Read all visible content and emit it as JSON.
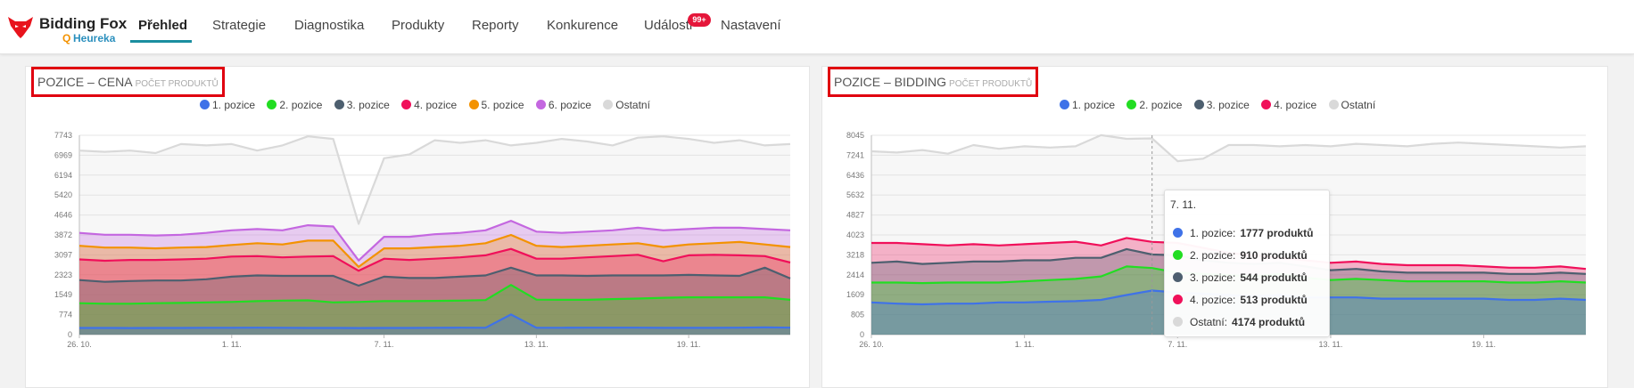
{
  "app": {
    "brand": "Bidding Fox",
    "brand_sub": "Heureka"
  },
  "nav": {
    "items": [
      {
        "label": "Přehled"
      },
      {
        "label": "Strategie"
      },
      {
        "label": "Diagnostika"
      },
      {
        "label": "Produkty"
      },
      {
        "label": "Reporty"
      },
      {
        "label": "Konkurence"
      },
      {
        "label": "Události"
      },
      {
        "label": "Nastavení"
      }
    ],
    "active_index": 0,
    "events_badge": "99+"
  },
  "panels": [
    {
      "title": "POZICE – CENA",
      "subtitle": "POČET PRODUKTŮ",
      "legend": [
        {
          "label": "1. pozice",
          "color": "#3f72e8"
        },
        {
          "label": "2. pozice",
          "color": "#22dd22"
        },
        {
          "label": "3. pozice",
          "color": "#4d5f6f"
        },
        {
          "label": "4. pozice",
          "color": "#f0105a"
        },
        {
          "label": "5. pozice",
          "color": "#f39200"
        },
        {
          "label": "6. pozice",
          "color": "#c467e0"
        },
        {
          "label": "Ostatní",
          "color": "#d9d9d9"
        }
      ]
    },
    {
      "title": "POZICE – BIDDING",
      "subtitle": "POČET PRODUKTŮ",
      "legend": [
        {
          "label": "1. pozice",
          "color": "#3f72e8"
        },
        {
          "label": "2. pozice",
          "color": "#22dd22"
        },
        {
          "label": "3. pozice",
          "color": "#4d5f6f"
        },
        {
          "label": "4. pozice",
          "color": "#f0105a"
        },
        {
          "label": "Ostatní",
          "color": "#d9d9d9"
        }
      ]
    }
  ],
  "tooltip": {
    "title": "7. 11.",
    "rows": [
      {
        "label": "1. pozice:",
        "value": "1777 produktů",
        "color": "#3f72e8"
      },
      {
        "label": "2. pozice:",
        "value": "910 produktů",
        "color": "#22dd22"
      },
      {
        "label": "3. pozice:",
        "value": "544 produktů",
        "color": "#4d5f6f"
      },
      {
        "label": "4. pozice:",
        "value": "513 produktů",
        "color": "#f0105a"
      },
      {
        "label": "Ostatní:",
        "value": "4174 produktů",
        "color": "#d9d9d9"
      }
    ]
  },
  "chart_data": [
    {
      "type": "area",
      "title": "POZICE – CENA",
      "subtitle": "POČET PRODUKTŮ",
      "stacked": true,
      "x_labels": [
        "26. 10.",
        "1. 11.",
        "7. 11.",
        "13. 11.",
        "19. 11."
      ],
      "y_ticks": [
        0,
        774,
        1549,
        2323,
        3097,
        3872,
        4646,
        5420,
        6194,
        6969,
        7743
      ],
      "ylim": [
        0,
        7743
      ],
      "series": [
        {
          "name": "1. pozice",
          "color": "#3f72e8",
          "top": [
            260,
            260,
            255,
            260,
            260,
            265,
            265,
            270,
            265,
            260,
            258,
            255,
            258,
            260,
            265,
            270,
            265,
            780,
            265,
            265,
            270,
            270,
            268,
            262,
            262,
            262,
            270,
            280,
            270
          ]
        },
        {
          "name": "2. pozice",
          "color": "#22dd22",
          "top": [
            1220,
            1200,
            1200,
            1220,
            1230,
            1250,
            1270,
            1300,
            1320,
            1330,
            1250,
            1270,
            1300,
            1300,
            1310,
            1320,
            1340,
            1930,
            1360,
            1350,
            1350,
            1380,
            1400,
            1430,
            1450,
            1450,
            1450,
            1450,
            1350
          ]
        },
        {
          "name": "3. pozice",
          "color": "#4d5f6f",
          "top": [
            2120,
            2050,
            2080,
            2100,
            2100,
            2150,
            2250,
            2300,
            2280,
            2280,
            2280,
            1900,
            2250,
            2200,
            2200,
            2250,
            2300,
            2600,
            2300,
            2300,
            2280,
            2300,
            2300,
            2300,
            2320,
            2300,
            2280,
            2600,
            2180
          ]
        },
        {
          "name": "4. pozice",
          "color": "#f0105a",
          "top": [
            2920,
            2870,
            2900,
            2900,
            2920,
            2950,
            3030,
            3050,
            3000,
            3030,
            3050,
            2480,
            2950,
            2900,
            2950,
            3000,
            3080,
            3330,
            2950,
            2950,
            3000,
            3050,
            3100,
            2850,
            3080,
            3100,
            3080,
            3050,
            2800
          ]
        },
        {
          "name": "5. pozice",
          "color": "#f39200",
          "top": [
            3450,
            3380,
            3380,
            3350,
            3380,
            3400,
            3480,
            3550,
            3500,
            3650,
            3650,
            2630,
            3350,
            3350,
            3400,
            3450,
            3550,
            3870,
            3450,
            3400,
            3450,
            3500,
            3550,
            3400,
            3500,
            3550,
            3600,
            3500,
            3400
          ]
        },
        {
          "name": "6. pozice",
          "color": "#c467e0",
          "top": [
            3950,
            3880,
            3880,
            3850,
            3880,
            3950,
            4050,
            4100,
            4050,
            4250,
            4200,
            2880,
            3800,
            3800,
            3900,
            3950,
            4050,
            4420,
            4000,
            3950,
            4000,
            4050,
            4150,
            4050,
            4100,
            4150,
            4150,
            4100,
            4050
          ]
        },
        {
          "name": "Ostatní",
          "color": "#d9d9d9",
          "top": [
            7150,
            7100,
            7150,
            7050,
            7400,
            7350,
            7400,
            7150,
            7350,
            7700,
            7600,
            4300,
            6850,
            7000,
            7550,
            7450,
            7550,
            7350,
            7450,
            7600,
            7500,
            7350,
            7650,
            7700,
            7600,
            7450,
            7550,
            7350,
            7400
          ]
        }
      ]
    },
    {
      "type": "area",
      "title": "POZICE – BIDDING",
      "subtitle": "POČET PRODUKTŮ",
      "stacked": true,
      "x_labels": [
        "26. 10.",
        "1. 11.",
        "7. 11.",
        "13. 11.",
        "19. 11."
      ],
      "y_ticks": [
        0,
        805,
        1609,
        2414,
        3218,
        4023,
        4827,
        5632,
        6436,
        7241,
        8045
      ],
      "ylim": [
        0,
        8045
      ],
      "series": [
        {
          "name": "1. pozice",
          "color": "#3f72e8",
          "top": [
            1300,
            1250,
            1220,
            1250,
            1250,
            1300,
            1300,
            1330,
            1350,
            1400,
            1600,
            1777,
            1700,
            1650,
            1600,
            1550,
            1600,
            1500,
            1500,
            1500,
            1450,
            1450,
            1450,
            1450,
            1450,
            1400,
            1400,
            1450,
            1400
          ]
        },
        {
          "name": "2. pozice",
          "color": "#22dd22",
          "top": [
            2100,
            2100,
            2080,
            2100,
            2100,
            2100,
            2150,
            2200,
            2250,
            2350,
            2750,
            2687,
            2500,
            2450,
            2400,
            2350,
            2450,
            2300,
            2200,
            2250,
            2200,
            2150,
            2150,
            2150,
            2150,
            2100,
            2100,
            2150,
            2100
          ]
        },
        {
          "name": "3. pozice",
          "color": "#4d5f6f",
          "top": [
            2900,
            2950,
            2850,
            2900,
            2950,
            2950,
            3000,
            3000,
            3100,
            3100,
            3450,
            3231,
            3200,
            3000,
            2900,
            2850,
            2900,
            2750,
            2600,
            2650,
            2550,
            2500,
            2500,
            2500,
            2500,
            2450,
            2450,
            2500,
            2450
          ]
        },
        {
          "name": "4. pozice",
          "color": "#f0105a",
          "top": [
            3700,
            3700,
            3650,
            3600,
            3650,
            3600,
            3650,
            3700,
            3750,
            3600,
            3900,
            3744,
            3700,
            3500,
            3300,
            3200,
            3100,
            3000,
            2900,
            2950,
            2850,
            2800,
            2800,
            2800,
            2750,
            2700,
            2700,
            2750,
            2650
          ]
        },
        {
          "name": "Ostatní",
          "color": "#d9d9d9",
          "top": [
            7400,
            7350,
            7450,
            7300,
            7650,
            7500,
            7600,
            7550,
            7600,
            8050,
            7900,
            7918,
            7000,
            7100,
            7650,
            7650,
            7600,
            7650,
            7600,
            7700,
            7650,
            7600,
            7700,
            7750,
            7700,
            7650,
            7600,
            7550,
            7600
          ]
        }
      ]
    }
  ]
}
